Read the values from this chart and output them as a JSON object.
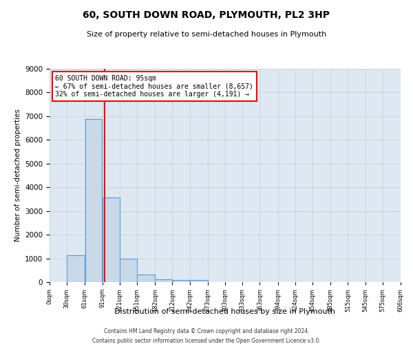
{
  "title": "60, SOUTH DOWN ROAD, PLYMOUTH, PL2 3HP",
  "subtitle": "Size of property relative to semi-detached houses in Plymouth",
  "xlabel": "Distribution of semi-detached houses by size in Plymouth",
  "ylabel": "Number of semi-detached properties",
  "property_size": 95,
  "property_label": "60 SOUTH DOWN ROAD: 95sqm",
  "pct_smaller": 67,
  "count_smaller": 8657,
  "pct_larger": 32,
  "count_larger": 4191,
  "bin_edges": [
    0,
    30,
    61,
    91,
    121,
    151,
    182,
    212,
    242,
    273,
    303,
    333,
    363,
    394,
    424,
    454,
    485,
    515,
    545,
    575,
    606
  ],
  "bar_heights": [
    0,
    1120,
    6880,
    3560,
    1000,
    320,
    130,
    100,
    90,
    0,
    0,
    0,
    0,
    0,
    0,
    0,
    0,
    0,
    0,
    0
  ],
  "bar_color": "#c9d9e8",
  "bar_edge_color": "#5b9bd5",
  "vline_color": "red",
  "vline_x": 95,
  "grid_color": "#cccccc",
  "background_color": "#dde8f3",
  "ylim": [
    0,
    9000
  ],
  "xlim": [
    0,
    606
  ],
  "footnote1": "Contains HM Land Registry data © Crown copyright and database right 2024.",
  "footnote2": "Contains public sector information licensed under the Open Government Licence v3.0."
}
